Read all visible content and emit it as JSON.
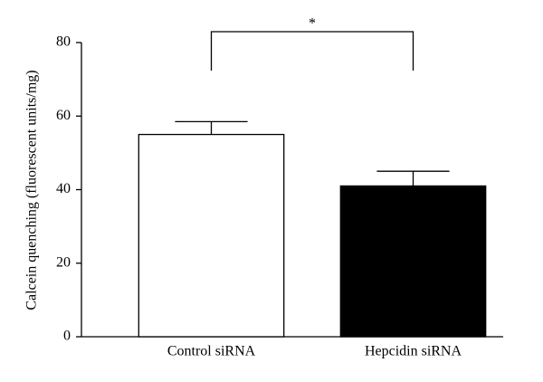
{
  "chart_data": {
    "type": "bar",
    "y_label": "Calcein quenching (fluorescent units/mg)",
    "categories": [
      "Control siRNA",
      "Hepcidin siRNA"
    ],
    "values": [
      55,
      41
    ],
    "errors": [
      3.5,
      4
    ],
    "colors": [
      "#ffffff",
      "#000000"
    ],
    "ylim": [
      0,
      80
    ],
    "yticks": [
      0,
      20,
      40,
      60,
      80
    ],
    "grid": false,
    "annotation": "*"
  }
}
